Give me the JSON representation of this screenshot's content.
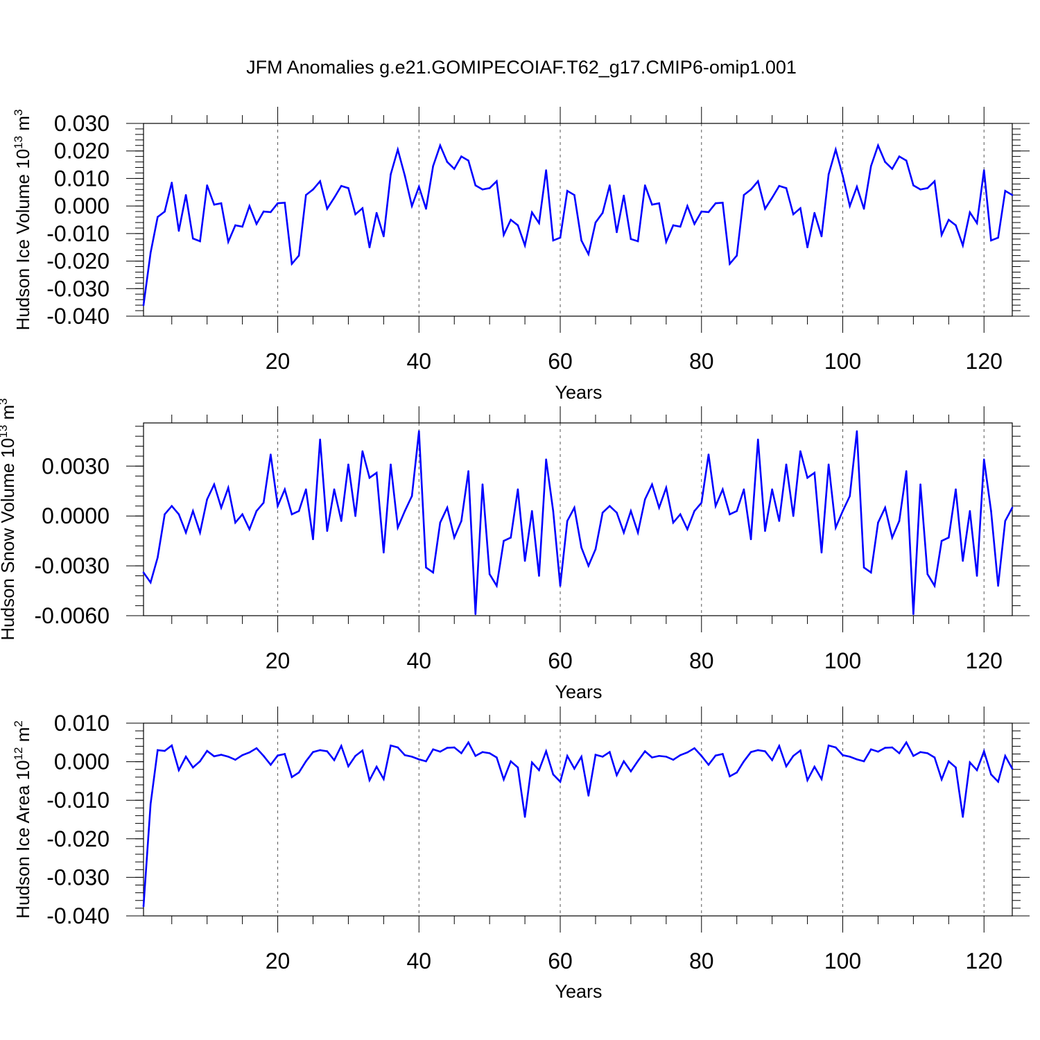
{
  "title": "JFM Anomalies g.e21.GOMIPECOIAF.T62_g17.CMIP6-omip1.001",
  "chart_data": [
    {
      "type": "line",
      "ylabel": {
        "text": "Hudson Ice Volume 10",
        "exponent": "13",
        "unit": " m",
        "unit_exponent": "3"
      },
      "xlabel": "Years",
      "xlim": [
        1,
        124
      ],
      "ylim": [
        -0.04,
        0.03
      ],
      "yticks": [
        -0.04,
        -0.03,
        -0.02,
        -0.01,
        0,
        0.01,
        0.02,
        0.03
      ],
      "ytick_labels": [
        "-0.040",
        "-0.030",
        "-0.020",
        "-0.010",
        "0.000",
        "0.010",
        "0.020",
        "0.030"
      ],
      "xticks": [
        20,
        40,
        60,
        80,
        100,
        120
      ],
      "xtick_labels": [
        "20",
        "40",
        "60",
        "80",
        "100",
        "120"
      ],
      "grid": "vertical dashed at major x ticks",
      "line_color": "#0000ff",
      "series": [
        {
          "x_start": 1,
          "values": [
            -0.036,
            -0.017,
            -0.004,
            -0.002,
            0.0085,
            -0.009,
            0.004,
            -0.0118,
            -0.0128,
            0.0075,
            0.0005,
            0.001,
            -0.013,
            -0.007,
            -0.0075,
            0.0,
            -0.0065,
            -0.002,
            -0.0022,
            0.001,
            0.0012,
            -0.021,
            -0.018,
            0.004,
            0.006,
            0.009,
            -0.001,
            0.003,
            0.0073,
            0.0065,
            -0.003,
            -0.0008,
            -0.015,
            -0.0025,
            -0.011,
            0.0115,
            0.0205,
            0.011,
            0.0,
            0.007,
            -0.001,
            0.0145,
            0.022,
            0.016,
            0.0135,
            0.018,
            0.0165,
            0.0075,
            0.006,
            0.0065,
            0.009,
            -0.0105,
            -0.005,
            -0.007,
            -0.0143,
            -0.0023,
            -0.0062,
            0.013,
            -0.0125,
            -0.0115,
            0.0055,
            0.004,
            -0.0125,
            -0.0175,
            -0.006,
            -0.0025,
            0.0075,
            -0.0095,
            0.0038,
            -0.012,
            -0.0128,
            0.0075,
            0.0005,
            0.001,
            -0.013,
            -0.007,
            -0.0075,
            0.0,
            -0.0065,
            -0.002,
            -0.0022,
            0.001,
            0.0012,
            -0.021,
            -0.018,
            0.004,
            0.006,
            0.009,
            -0.001,
            0.003,
            0.0073,
            0.0065,
            -0.003,
            -0.0008,
            -0.015,
            -0.0025,
            -0.011,
            0.0115,
            0.0205,
            0.011,
            0.0,
            0.007,
            -0.001,
            0.0145,
            0.022,
            0.016,
            0.0135,
            0.018,
            0.0165,
            0.0075,
            0.006,
            0.0065,
            0.009,
            -0.0105,
            -0.005,
            -0.007,
            -0.0143,
            -0.0023,
            -0.0062,
            0.013,
            -0.0125,
            -0.0115,
            0.0055,
            0.004
          ]
        }
      ]
    },
    {
      "type": "line",
      "ylabel": {
        "text": "Hudson Snow Volume 10",
        "exponent": "13",
        "unit": " m",
        "unit_exponent": "3"
      },
      "xlabel": "Years",
      "xlim": [
        1,
        124
      ],
      "ylim": [
        -0.006,
        0.0056
      ],
      "yticks": [
        -0.006,
        -0.003,
        0,
        0.003
      ],
      "ytick_labels": [
        "-0.0060",
        "-0.0030",
        "0.0000",
        "0.0030"
      ],
      "xticks": [
        20,
        40,
        60,
        80,
        100,
        120
      ],
      "xtick_labels": [
        "20",
        "40",
        "60",
        "80",
        "100",
        "120"
      ],
      "grid": "vertical dashed at major x ticks",
      "line_color": "#0000ff",
      "series": [
        {
          "x_start": 1,
          "values": [
            -0.0034,
            -0.004,
            -0.0025,
            0.0001,
            0.0006,
            0.0001,
            -0.001,
            0.0003,
            -0.001,
            0.001,
            0.0019,
            0.0005,
            0.0017,
            -0.0004,
            0.0001,
            -0.0008,
            0.0003,
            0.0008,
            0.0037,
            0.0006,
            0.0016,
            0.0001,
            0.0003,
            0.0016,
            -0.0014,
            0.0046,
            -0.0009,
            0.0016,
            -0.0003,
            0.0031,
            0.0,
            0.0039,
            0.0023,
            0.0026,
            -0.0022,
            0.0031,
            -0.0007,
            0.0003,
            0.0012,
            0.0051,
            -0.0031,
            -0.0034,
            -0.0004,
            0.0005,
            -0.0013,
            -0.0003,
            0.0027,
            -0.0059,
            0.0019,
            -0.0035,
            -0.0042,
            -0.0015,
            -0.0013,
            0.0016,
            -0.0027,
            0.0003,
            -0.0036,
            0.0034,
            0.0003,
            -0.0042,
            -0.0003,
            0.0005,
            -0.0019,
            -0.003,
            -0.002,
            0.0002,
            0.0006,
            0.0002,
            -0.001,
            0.0003,
            -0.001,
            0.001,
            0.0019,
            0.0005,
            0.0017,
            -0.0004,
            0.0001,
            -0.0008,
            0.0003,
            0.0008,
            0.0037,
            0.0006,
            0.0016,
            0.0001,
            0.0003,
            0.0016,
            -0.0014,
            0.0046,
            -0.0009,
            0.0016,
            -0.0003,
            0.0031,
            0.0,
            0.0039,
            0.0023,
            0.0026,
            -0.0022,
            0.0031,
            -0.0007,
            0.0003,
            0.0012,
            0.0051,
            -0.0031,
            -0.0034,
            -0.0004,
            0.0005,
            -0.0013,
            -0.0003,
            0.0027,
            -0.0059,
            0.0019,
            -0.0035,
            -0.0042,
            -0.0015,
            -0.0013,
            0.0016,
            -0.0027,
            0.0003,
            -0.0036,
            0.0034,
            0.0003,
            -0.0042,
            -0.0003,
            0.0005
          ]
        }
      ]
    },
    {
      "type": "line",
      "ylabel": {
        "text": "Hudson Ice Area 10",
        "exponent": "12",
        "unit": " m",
        "unit_exponent": "2"
      },
      "xlabel": "Years",
      "xlim": [
        1,
        124
      ],
      "ylim": [
        -0.04,
        0.01
      ],
      "yticks": [
        -0.04,
        -0.03,
        -0.02,
        -0.01,
        0,
        0.01
      ],
      "ytick_labels": [
        "-0.040",
        "-0.030",
        "-0.020",
        "-0.010",
        "0.000",
        "0.010"
      ],
      "xticks": [
        20,
        40,
        60,
        80,
        100,
        120
      ],
      "xtick_labels": [
        "20",
        "40",
        "60",
        "80",
        "100",
        "120"
      ],
      "grid": "vertical dashed at major x ticks",
      "line_color": "#0000ff",
      "series": [
        {
          "x_start": 1,
          "values": [
            -0.0375,
            -0.011,
            0.003,
            0.0028,
            0.0042,
            -0.0022,
            0.0013,
            -0.0015,
            0.0001,
            0.0028,
            0.0014,
            0.0018,
            0.0013,
            0.0005,
            0.0017,
            0.0024,
            0.0035,
            0.0015,
            -0.0008,
            0.0016,
            0.002,
            -0.004,
            -0.0028,
            0.0001,
            0.0025,
            0.003,
            0.0027,
            0.0004,
            0.0041,
            -0.0012,
            0.0015,
            0.0029,
            -0.0048,
            -0.0013,
            -0.0045,
            0.0042,
            0.0037,
            0.0017,
            0.0013,
            0.0006,
            0.0001,
            0.0032,
            0.0026,
            0.0036,
            0.0037,
            0.0022,
            0.005,
            0.0015,
            0.0025,
            0.0022,
            0.0011,
            -0.0046,
            0.0001,
            -0.0015,
            -0.0143,
            -0.0002,
            -0.0022,
            0.0027,
            -0.0033,
            -0.0052,
            0.0015,
            -0.0018,
            0.0013,
            -0.0088,
            0.0018,
            0.0013,
            0.0025,
            -0.0035,
            0.0001,
            -0.0025,
            0.0002,
            0.0027,
            0.0011,
            0.0015,
            0.0013,
            0.0005,
            0.0017,
            0.0024,
            0.0035,
            0.0015,
            -0.0008,
            0.0016,
            0.002,
            -0.0038,
            -0.0028,
            0.0001,
            0.0025,
            0.003,
            0.0027,
            0.0004,
            0.0041,
            -0.0012,
            0.0015,
            0.0029,
            -0.0048,
            -0.0013,
            -0.0045,
            0.0042,
            0.0037,
            0.0017,
            0.0013,
            0.0006,
            0.0001,
            0.0032,
            0.0026,
            0.0036,
            0.0037,
            0.0022,
            0.005,
            0.0015,
            0.0025,
            0.0022,
            0.0011,
            -0.0046,
            0.0001,
            -0.0015,
            -0.0143,
            -0.0002,
            -0.0022,
            0.0027,
            -0.0033,
            -0.0052,
            0.0015,
            -0.0018
          ]
        }
      ]
    }
  ]
}
